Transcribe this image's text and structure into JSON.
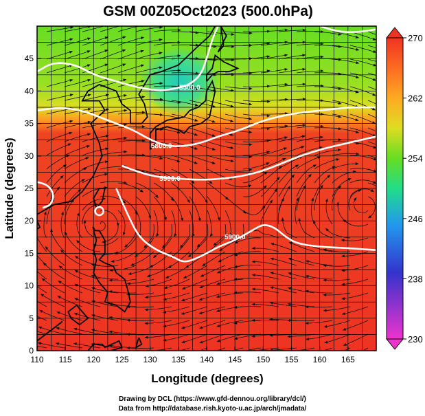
{
  "chart_data": {
    "type": "heatmap",
    "title": "GSM 00Z05Oct2023 (500.0hPa)",
    "xlabel": "Longitude (degrees)",
    "ylabel": "Latitude  (degrees)",
    "xlim": [
      110,
      170
    ],
    "ylim": [
      0,
      50
    ],
    "xticks": [
      "110",
      "115",
      "120",
      "125",
      "130",
      "135",
      "140",
      "145",
      "150",
      "155",
      "160",
      "165"
    ],
    "yticks": [
      "0",
      "5",
      "10",
      "15",
      "20",
      "25",
      "30",
      "35",
      "40",
      "45"
    ],
    "grid": true,
    "colorbar": {
      "range": [
        230,
        270
      ],
      "ticks": [
        "270",
        "262",
        "254",
        "246",
        "238",
        "230"
      ],
      "colors": [
        "#ee33cc",
        "#3333cc",
        "#2299ee",
        "#22dd88",
        "#66dd22",
        "#dddd22",
        "#ff9922",
        "#ee3322"
      ]
    },
    "contours": [
      {
        "label": "5500.0",
        "label_pos": [
          137,
          40.5
        ],
        "points": [
          [
            110,
            43
          ],
          [
            113,
            44.5
          ],
          [
            117,
            44
          ],
          [
            120,
            42.5
          ],
          [
            124,
            41.5
          ],
          [
            128,
            40.5
          ],
          [
            132,
            40
          ],
          [
            135,
            40.5
          ],
          [
            137,
            41
          ],
          [
            139,
            42.5
          ],
          [
            140,
            45
          ],
          [
            141,
            48
          ],
          [
            142,
            50
          ]
        ]
      },
      {
        "label": "5800.0",
        "label_pos": [
          132,
          31.5
        ],
        "points": [
          [
            110,
            37
          ],
          [
            114,
            37.5
          ],
          [
            118,
            37
          ],
          [
            121,
            36
          ],
          [
            124,
            35
          ],
          [
            127,
            34
          ],
          [
            130,
            32.5
          ],
          [
            133,
            31.5
          ],
          [
            136,
            31.5
          ],
          [
            139,
            32
          ],
          [
            142,
            33
          ],
          [
            146,
            34
          ],
          [
            150,
            35.5
          ],
          [
            155,
            36.5
          ],
          [
            160,
            37
          ],
          [
            165,
            37.5
          ],
          [
            170,
            37.5
          ]
        ]
      },
      {
        "label": "5900.0",
        "label_pos": [
          133.5,
          26.5
        ],
        "points": [
          [
            125,
            28.5
          ],
          [
            128,
            27.5
          ],
          [
            131,
            26.8
          ],
          [
            135,
            26.5
          ],
          [
            139,
            26.3
          ],
          [
            143,
            26.5
          ],
          [
            147,
            27
          ],
          [
            151,
            28
          ],
          [
            155,
            29.5
          ],
          [
            160,
            31
          ],
          [
            165,
            32
          ],
          [
            170,
            33
          ]
        ]
      },
      {
        "label": "5900.0",
        "label_pos": [
          145,
          17.5
        ],
        "points": [
          [
            124,
            25
          ],
          [
            126,
            21
          ],
          [
            128,
            17.5
          ],
          [
            131,
            15.5
          ],
          [
            134,
            14.5
          ],
          [
            136,
            13.5
          ],
          [
            139,
            14.5
          ],
          [
            142,
            16
          ],
          [
            145,
            17
          ],
          [
            148,
            18.5
          ],
          [
            150,
            19.5
          ],
          [
            152,
            19
          ],
          [
            154,
            17.5
          ],
          [
            156,
            16.5
          ],
          [
            160,
            16
          ],
          [
            165,
            15.8
          ],
          [
            170,
            15.5
          ]
        ]
      },
      {
        "label": "",
        "label_pos": [
          0,
          0
        ],
        "points": [
          [
            110,
            26
          ],
          [
            112,
            25.5
          ],
          [
            113,
            24
          ],
          [
            112.5,
            22.5
          ],
          [
            111,
            22
          ]
        ]
      },
      {
        "label": "",
        "label_pos": [
          0,
          0
        ],
        "points": [
          [
            160,
            50
          ],
          [
            163,
            49.2
          ],
          [
            166,
            49
          ],
          [
            170,
            49.5
          ]
        ]
      }
    ],
    "annotations": [
      "5500.0",
      "5800.0",
      "5900.0",
      "5900.0"
    ]
  },
  "credits": {
    "line1": "Drawing by DCL (https://www.gfd-dennou.org/library/dcl/)",
    "line2": "Data from http://database.rish.kyoto-u.ac.jp/arch/jmadata/"
  }
}
